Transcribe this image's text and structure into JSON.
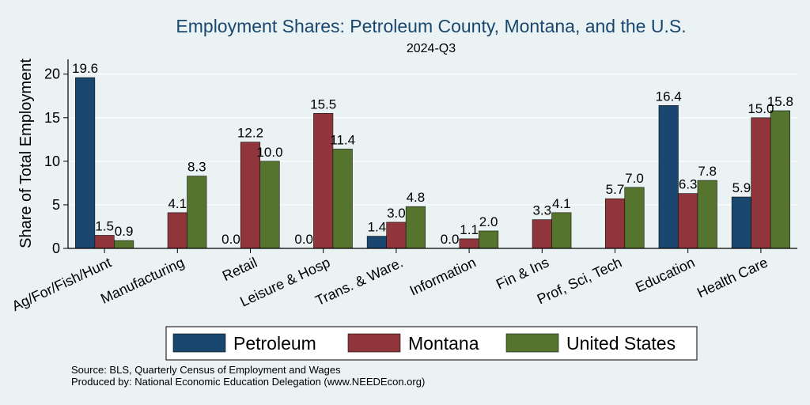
{
  "chart_data": {
    "type": "bar",
    "title": "Employment Shares: Petroleum County, Montana, and the U.S.",
    "subtitle": "2024-Q3",
    "xlabel": "",
    "ylabel": "Share of Total Employment",
    "ylim": [
      0,
      21.7
    ],
    "yticks": [
      0,
      5,
      10,
      15,
      20
    ],
    "grid": true,
    "legend_position": "bottom",
    "categories": [
      "Ag/For/Fish/Hunt",
      "Manufacturing",
      "Retail",
      "Leisure & Hosp",
      "Trans. & Ware.",
      "Information",
      "Fin & Ins",
      "Prof, Sci, Tech",
      "Education",
      "Health Care"
    ],
    "series": [
      {
        "name": "Petroleum",
        "color": "#1a476f",
        "values": [
          19.6,
          null,
          0.0,
          0.0,
          1.4,
          0.0,
          null,
          null,
          16.4,
          5.9
        ],
        "labels": [
          "19.6",
          "",
          "0.0",
          "0.0",
          "1.4",
          "0.0",
          "",
          "",
          "16.4",
          "5.9"
        ]
      },
      {
        "name": "Montana",
        "color": "#90353b",
        "values": [
          1.5,
          4.1,
          12.2,
          15.5,
          3.0,
          1.1,
          3.3,
          5.7,
          6.3,
          15.0
        ],
        "labels": [
          "1.5",
          "4.1",
          "12.2",
          "15.5",
          "3.0",
          "1.1",
          "3.3",
          "5.7",
          "6.3",
          "15.0"
        ]
      },
      {
        "name": "United States",
        "color": "#55752f",
        "values": [
          0.9,
          8.3,
          10.0,
          11.4,
          4.8,
          2.0,
          4.1,
          7.0,
          7.8,
          15.8
        ],
        "labels": [
          "0.9",
          "8.3",
          "10.0",
          "11.4",
          "4.8",
          "2.0",
          "4.1",
          "7.0",
          "7.8",
          "15.8"
        ]
      }
    ],
    "notes": [
      "Source: BLS, Quarterly Census of Employment and Wages",
      "Produced by: National Economic Education Delegation (www.NEEDEcon.org)"
    ]
  }
}
